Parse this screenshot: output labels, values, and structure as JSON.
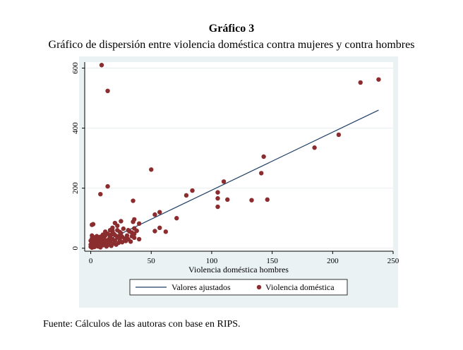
{
  "figure": {
    "heading": "Gráfico 3",
    "subheading": "Gráfico de dispersión entre violencia doméstica contra mujeres y contra hombres",
    "footer": "Fuente: Cálculos de las autoras con base en RIPS."
  },
  "colors": {
    "plot_background": "#eaf2f3",
    "panel_background": "#ffffff",
    "scatter": "#8b2c2f",
    "fit_line": "#1f3f66"
  },
  "chart_data": {
    "type": "scatter",
    "xlabel": "Violencia doméstica hombres",
    "ylabel": "",
    "xlim": [
      -5,
      250
    ],
    "ylim": [
      -10,
      620
    ],
    "xticks": [
      0,
      50,
      100,
      150,
      200,
      250
    ],
    "yticks": [
      0,
      200,
      400,
      600
    ],
    "grid": "horizontal",
    "legend_position": "bottom",
    "series": [
      {
        "name": "Valores ajustados",
        "kind": "line",
        "points": [
          [
            0,
            0
          ],
          [
            238,
            460
          ]
        ]
      },
      {
        "name": "Violencia doméstica",
        "kind": "points",
        "points": [
          [
            9,
            610
          ],
          [
            14,
            524
          ],
          [
            223,
            552
          ],
          [
            238,
            562
          ],
          [
            143,
            305
          ],
          [
            141,
            250
          ],
          [
            185,
            335
          ],
          [
            205,
            378
          ],
          [
            50,
            262
          ],
          [
            14,
            206
          ],
          [
            8,
            180
          ],
          [
            35,
            158
          ],
          [
            110,
            222
          ],
          [
            105,
            186
          ],
          [
            105,
            166
          ],
          [
            113,
            162
          ],
          [
            133,
            160
          ],
          [
            146,
            162
          ],
          [
            105,
            138
          ],
          [
            84,
            192
          ],
          [
            79,
            176
          ],
          [
            71,
            100
          ],
          [
            62,
            55
          ],
          [
            57,
            120
          ],
          [
            53,
            112
          ],
          [
            53,
            57
          ],
          [
            57,
            68
          ],
          [
            40,
            82
          ],
          [
            36,
            96
          ],
          [
            35,
            88
          ],
          [
            36,
            66
          ],
          [
            34,
            52
          ],
          [
            36,
            35
          ],
          [
            33,
            22
          ],
          [
            40,
            30
          ],
          [
            25,
            90
          ],
          [
            22,
            75
          ],
          [
            20,
            84
          ],
          [
            27,
            65
          ],
          [
            31,
            60
          ],
          [
            25,
            50
          ],
          [
            23,
            40
          ],
          [
            18,
            58
          ],
          [
            17,
            45
          ],
          [
            16,
            38
          ],
          [
            15,
            30
          ],
          [
            13,
            25
          ],
          [
            12,
            42
          ],
          [
            11,
            20
          ],
          [
            10,
            35
          ],
          [
            9,
            15
          ],
          [
            8,
            28
          ],
          [
            7,
            10
          ],
          [
            6,
            22
          ],
          [
            5,
            12
          ],
          [
            4,
            30
          ],
          [
            3,
            18
          ],
          [
            2,
            8
          ],
          [
            1,
            42
          ],
          [
            1,
            78
          ],
          [
            2,
            80
          ],
          [
            0,
            5
          ],
          [
            1,
            2
          ],
          [
            2,
            14
          ],
          [
            3,
            4
          ],
          [
            4,
            9
          ],
          [
            5,
            20
          ],
          [
            6,
            6
          ],
          [
            7,
            17
          ],
          [
            8,
            3
          ],
          [
            9,
            24
          ],
          [
            10,
            10
          ],
          [
            11,
            32
          ],
          [
            12,
            14
          ],
          [
            13,
            6
          ],
          [
            14,
            18
          ],
          [
            15,
            12
          ],
          [
            16,
            22
          ],
          [
            17,
            8
          ],
          [
            18,
            30
          ],
          [
            19,
            16
          ],
          [
            20,
            26
          ],
          [
            21,
            12
          ],
          [
            22,
            36
          ],
          [
            23,
            18
          ],
          [
            24,
            28
          ],
          [
            26,
            20
          ],
          [
            28,
            32
          ],
          [
            30,
            42
          ],
          [
            32,
            56
          ],
          [
            20,
            44
          ],
          [
            14,
            48
          ],
          [
            12,
            55
          ],
          [
            10,
            45
          ],
          [
            8,
            38
          ],
          [
            6,
            32
          ],
          [
            5,
            40
          ],
          [
            3,
            36
          ],
          [
            2,
            26
          ],
          [
            1,
            20
          ],
          [
            0,
            12
          ],
          [
            0,
            25
          ],
          [
            1,
            32
          ],
          [
            18,
            68
          ],
          [
            16,
            60
          ],
          [
            22,
            60
          ],
          [
            24,
            54
          ],
          [
            19,
            48
          ],
          [
            26,
            38
          ],
          [
            29,
            24
          ],
          [
            31,
            30
          ],
          [
            34,
            40
          ],
          [
            36,
            48
          ],
          [
            38,
            58
          ]
        ]
      }
    ]
  }
}
